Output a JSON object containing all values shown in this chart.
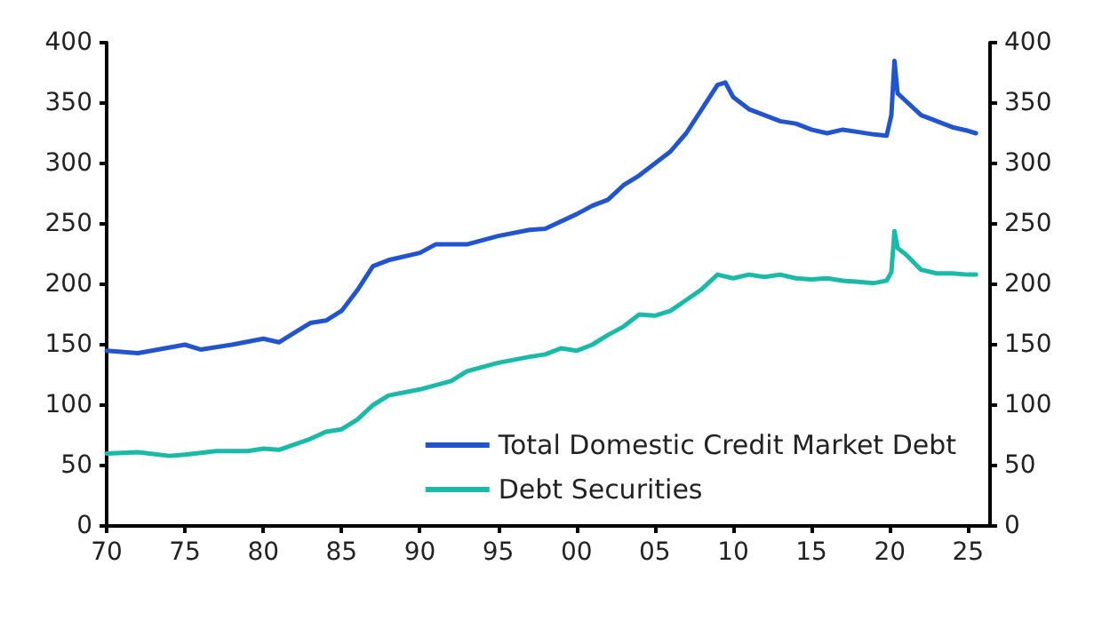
{
  "chart_data": {
    "type": "line",
    "xlim": [
      1970,
      2026.4
    ],
    "xticks": [
      {
        "value": 1970,
        "label": "70"
      },
      {
        "value": 1975,
        "label": "75"
      },
      {
        "value": 1980,
        "label": "80"
      },
      {
        "value": 1985,
        "label": "85"
      },
      {
        "value": 1990,
        "label": "90"
      },
      {
        "value": 1995,
        "label": "95"
      },
      {
        "value": 2000,
        "label": "00"
      },
      {
        "value": 2005,
        "label": "05"
      },
      {
        "value": 2010,
        "label": "10"
      },
      {
        "value": 2015,
        "label": "15"
      },
      {
        "value": 2020,
        "label": "20"
      },
      {
        "value": 2025,
        "label": "25"
      }
    ],
    "ylim": [
      0,
      400
    ],
    "yticks": [
      0,
      50,
      100,
      150,
      200,
      250,
      300,
      350,
      400
    ],
    "y2lim": [
      0,
      400
    ],
    "y2ticks": [
      0,
      50,
      100,
      150,
      200,
      250,
      300,
      350,
      400
    ],
    "grid": false,
    "legend": "bottom right",
    "marker": "none",
    "line_style": "solid",
    "series": [
      {
        "name": "Total Domestic Credit Market Debt",
        "color": "#2255cc",
        "x": [
          1970,
          1972,
          1975,
          1976,
          1978,
          1980,
          1981,
          1982,
          1983,
          1984,
          1985,
          1986,
          1987,
          1988,
          1990,
          1991,
          1993,
          1995,
          1997,
          1998,
          2000,
          2001,
          2002,
          2003,
          2004,
          2005,
          2006,
          2007,
          2008,
          2009,
          2009.5,
          2010,
          2011,
          2012,
          2013,
          2014,
          2015,
          2016,
          2017,
          2018,
          2019,
          2019.8,
          2020.1,
          2020.3,
          2020.5,
          2021,
          2022,
          2023,
          2024,
          2025,
          2025.5
        ],
        "values": [
          145,
          143,
          150,
          146,
          150,
          155,
          152,
          160,
          168,
          170,
          178,
          195,
          215,
          220,
          226,
          233,
          233,
          240,
          245,
          246,
          258,
          265,
          270,
          282,
          290,
          300,
          310,
          325,
          345,
          365,
          367,
          355,
          345,
          340,
          335,
          333,
          328,
          325,
          328,
          326,
          324,
          323,
          340,
          385,
          358,
          352,
          340,
          335,
          330,
          327,
          325
        ]
      },
      {
        "name": "Debt Securities",
        "color": "#1ab9a8",
        "x": [
          1970,
          1972,
          1974,
          1975,
          1977,
          1979,
          1980,
          1981,
          1983,
          1984,
          1985,
          1986,
          1987,
          1988,
          1990,
          1992,
          1993,
          1995,
          1997,
          1998,
          1999,
          2000,
          2001,
          2002,
          2003,
          2004,
          2005,
          2006,
          2007,
          2008,
          2009,
          2010,
          2011,
          2012,
          2013,
          2014,
          2015,
          2016,
          2017,
          2018,
          2019,
          2019.8,
          2020.1,
          2020.3,
          2020.5,
          2021,
          2022,
          2023,
          2024,
          2025,
          2025.5
        ],
        "values": [
          60,
          61,
          58,
          59,
          62,
          62,
          64,
          63,
          72,
          78,
          80,
          88,
          100,
          108,
          113,
          120,
          128,
          135,
          140,
          142,
          147,
          145,
          150,
          158,
          165,
          175,
          174,
          178,
          187,
          196,
          208,
          205,
          208,
          206,
          208,
          205,
          204,
          205,
          203,
          202,
          201,
          203,
          210,
          244,
          230,
          225,
          212,
          209,
          209,
          208,
          208
        ]
      }
    ]
  }
}
